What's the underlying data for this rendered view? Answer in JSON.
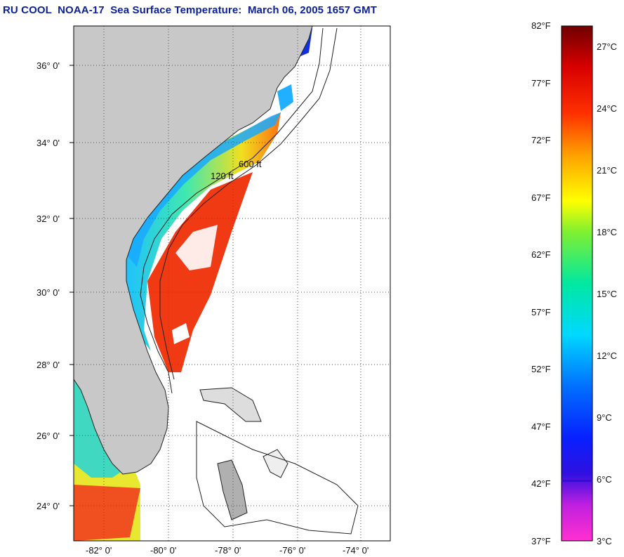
{
  "title": "RU COOL  NOAA-17  Sea Surface Temperature:  March 06, 2005 1657 GMT",
  "map": {
    "lat_ticks": [
      "36° 0'",
      "34° 0'",
      "32° 0'",
      "30° 0'",
      "28° 0'",
      "26° 0'",
      "24° 0'"
    ],
    "lon_ticks": [
      "-82° 0'",
      "-80° 0'",
      "-78° 0'",
      "-76° 0'",
      "-74° 0'"
    ],
    "isobath_labels": [
      "120 ft",
      "600 ft"
    ]
  },
  "colorbar": {
    "fahrenheit": [
      "82°F",
      "77°F",
      "72°F",
      "67°F",
      "62°F",
      "57°F",
      "52°F",
      "47°F",
      "42°F",
      "37°F"
    ],
    "celsius": [
      "27°C",
      "24°C",
      "21°C",
      "18°C",
      "15°C",
      "12°C",
      "9°C",
      "6°C",
      "3°C"
    ]
  },
  "colors": {
    "title": "#0a1f9c",
    "land": "#c8c8c8",
    "warm_water": "#f03010",
    "cool_water": "#22c0ff"
  }
}
